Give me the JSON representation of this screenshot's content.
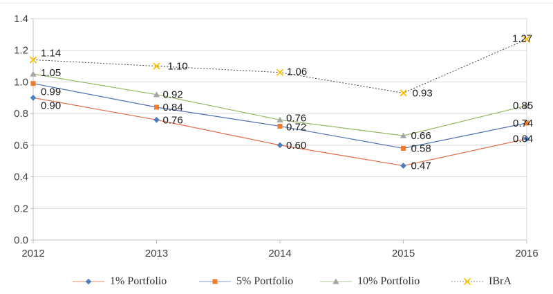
{
  "chart_data": {
    "type": "line",
    "title": "",
    "xlabel": "",
    "ylabel": "",
    "x": [
      "2012",
      "2013",
      "2014",
      "2015",
      "2016"
    ],
    "xticks": [
      "2012",
      "2013",
      "2014",
      "2015",
      "2016"
    ],
    "yticks": [
      "0.0",
      "0.2",
      "0.4",
      "0.6",
      "0.8",
      "1.0",
      "1.2",
      "1.4"
    ],
    "ylim": [
      0,
      1.4
    ],
    "ytick_step": 0.2,
    "grid": "horizontal",
    "legend_position": "bottom",
    "colors": {
      "gridline": "#d9d9d9",
      "axis": "#bfbfbf",
      "tick_text": "#404040",
      "label_text": "#1a1a1a",
      "top_border": "#e4eaec"
    },
    "series": [
      {
        "name": "1% Portfolio",
        "values": [
          0.9,
          0.76,
          0.6,
          0.47,
          0.64
        ],
        "labels": [
          "0.90",
          "0.76",
          "0.60",
          "0.47",
          "0.64"
        ],
        "label_offsets": [
          [
            11,
            11
          ],
          [
            9,
            0
          ],
          [
            9,
            0
          ],
          [
            11,
            0
          ],
          [
            -20,
            0
          ]
        ],
        "line_color": "#e26b4a",
        "legend_line_color": "#edb09e",
        "line_style": "solid",
        "marker": "diamond",
        "marker_color": "#4a7ebf"
      },
      {
        "name": "5% Portfolio",
        "values": [
          0.99,
          0.84,
          0.72,
          0.58,
          0.74
        ],
        "labels": [
          "0.99",
          "0.84",
          "0.72",
          "0.58",
          "0.74"
        ],
        "label_offsets": [
          [
            11,
            12
          ],
          [
            9,
            0
          ],
          [
            9,
            1
          ],
          [
            11,
            0
          ],
          [
            -20,
            0
          ]
        ],
        "line_color": "#4e6fae",
        "legend_line_color": "#aebcda",
        "line_style": "solid",
        "marker": "square",
        "marker_color": "#ed7d31"
      },
      {
        "name": "10% Portfolio",
        "values": [
          1.05,
          0.92,
          0.76,
          0.66,
          0.85
        ],
        "labels": [
          "1.05",
          "0.92",
          "0.76",
          "0.66",
          "0.85"
        ],
        "label_offsets": [
          [
            11,
            -2
          ],
          [
            9,
            0
          ],
          [
            9,
            -3
          ],
          [
            11,
            0
          ],
          [
            -20,
            0
          ]
        ],
        "line_color": "#94b762",
        "legend_line_color": "#ccdcb8",
        "line_style": "solid",
        "marker": "triangle",
        "marker_color": "#a5a5a5"
      },
      {
        "name": "IBrA",
        "values": [
          1.14,
          1.1,
          1.06,
          0.93,
          1.27
        ],
        "labels": [
          "1.14",
          "1.10",
          "1.06",
          "0.93",
          "1.27"
        ],
        "label_offsets": [
          [
            11,
            -10
          ],
          [
            16,
            0
          ],
          [
            10,
            -1
          ],
          [
            13,
            0
          ],
          [
            -21,
            -1
          ]
        ],
        "line_color": "#404040",
        "legend_line_color": "#b3b3b3",
        "line_style": "dotted",
        "marker": "x",
        "marker_color": "#ffc000"
      }
    ]
  }
}
